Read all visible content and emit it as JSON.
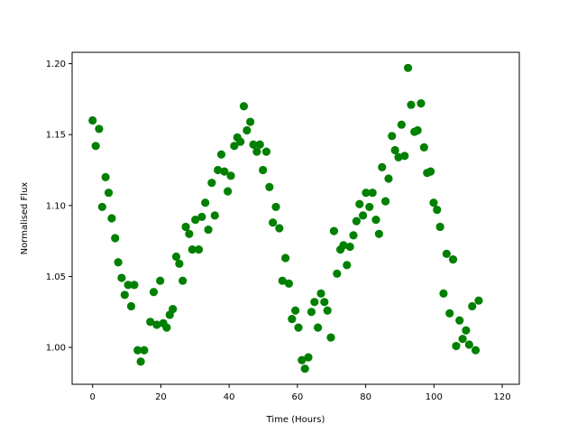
{
  "chart_data": {
    "type": "scatter",
    "title": "",
    "xlabel": "Time (Hours)",
    "ylabel": "Normalised Flux",
    "xlim": [
      -6,
      125
    ],
    "ylim": [
      0.974,
      1.208
    ],
    "xticks": [
      0,
      20,
      40,
      60,
      80,
      100,
      120
    ],
    "yticks": [
      1.0,
      1.05,
      1.1,
      1.15,
      1.2
    ],
    "xtick_labels": [
      "0",
      "20",
      "40",
      "60",
      "80",
      "100",
      "120"
    ],
    "ytick_labels": [
      "1.00",
      "1.05",
      "1.10",
      "1.15",
      "1.20"
    ],
    "grid": false,
    "marker_color": "#008000",
    "series": [
      {
        "points": [
          [
            0.0,
            1.16
          ],
          [
            0.9,
            1.142
          ],
          [
            1.9,
            1.154
          ],
          [
            2.8,
            1.099
          ],
          [
            3.8,
            1.12
          ],
          [
            4.7,
            1.109
          ],
          [
            5.6,
            1.091
          ],
          [
            6.6,
            1.077
          ],
          [
            7.5,
            1.06
          ],
          [
            8.5,
            1.049
          ],
          [
            9.4,
            1.037
          ],
          [
            10.4,
            1.044
          ],
          [
            11.3,
            1.029
          ],
          [
            12.2,
            1.044
          ],
          [
            13.2,
            0.998
          ],
          [
            14.1,
            0.99
          ],
          [
            15.1,
            0.998
          ],
          [
            16.9,
            1.018
          ],
          [
            17.9,
            1.039
          ],
          [
            18.8,
            1.016
          ],
          [
            19.8,
            1.047
          ],
          [
            20.7,
            1.017
          ],
          [
            21.7,
            1.014
          ],
          [
            22.6,
            1.023
          ],
          [
            23.5,
            1.027
          ],
          [
            24.5,
            1.064
          ],
          [
            25.4,
            1.059
          ],
          [
            26.4,
            1.047
          ],
          [
            27.3,
            1.085
          ],
          [
            28.3,
            1.08
          ],
          [
            29.2,
            1.069
          ],
          [
            30.1,
            1.09
          ],
          [
            31.1,
            1.069
          ],
          [
            32.0,
            1.092
          ],
          [
            33.0,
            1.102
          ],
          [
            33.9,
            1.083
          ],
          [
            34.9,
            1.116
          ],
          [
            35.8,
            1.093
          ],
          [
            36.7,
            1.125
          ],
          [
            37.7,
            1.136
          ],
          [
            38.6,
            1.124
          ],
          [
            39.6,
            1.11
          ],
          [
            40.5,
            1.121
          ],
          [
            41.5,
            1.142
          ],
          [
            42.4,
            1.148
          ],
          [
            43.3,
            1.145
          ],
          [
            44.3,
            1.17
          ],
          [
            45.2,
            1.153
          ],
          [
            46.2,
            1.159
          ],
          [
            47.1,
            1.143
          ],
          [
            48.1,
            1.138
          ],
          [
            49.0,
            1.143
          ],
          [
            49.9,
            1.125
          ],
          [
            50.9,
            1.138
          ],
          [
            51.8,
            1.113
          ],
          [
            52.8,
            1.088
          ],
          [
            53.7,
            1.099
          ],
          [
            54.7,
            1.084
          ],
          [
            55.6,
            1.047
          ],
          [
            56.5,
            1.063
          ],
          [
            57.5,
            1.045
          ],
          [
            58.4,
            1.02
          ],
          [
            59.4,
            1.026
          ],
          [
            60.3,
            1.014
          ],
          [
            61.3,
            0.991
          ],
          [
            62.2,
            0.985
          ],
          [
            63.2,
            0.993
          ],
          [
            64.1,
            1.025
          ],
          [
            65.0,
            1.032
          ],
          [
            66.0,
            1.014
          ],
          [
            66.9,
            1.038
          ],
          [
            67.9,
            1.032
          ],
          [
            68.8,
            1.026
          ],
          [
            69.8,
            1.007
          ],
          [
            70.7,
            1.082
          ],
          [
            71.6,
            1.052
          ],
          [
            72.6,
            1.069
          ],
          [
            73.5,
            1.072
          ],
          [
            74.5,
            1.058
          ],
          [
            75.4,
            1.071
          ],
          [
            76.4,
            1.079
          ],
          [
            77.3,
            1.089
          ],
          [
            78.2,
            1.101
          ],
          [
            79.2,
            1.093
          ],
          [
            80.1,
            1.109
          ],
          [
            81.1,
            1.099
          ],
          [
            82.0,
            1.109
          ],
          [
            83.0,
            1.09
          ],
          [
            83.9,
            1.08
          ],
          [
            84.8,
            1.127
          ],
          [
            85.8,
            1.103
          ],
          [
            86.7,
            1.119
          ],
          [
            87.7,
            1.149
          ],
          [
            88.6,
            1.139
          ],
          [
            89.6,
            1.134
          ],
          [
            90.5,
            1.157
          ],
          [
            91.4,
            1.135
          ],
          [
            92.4,
            1.197
          ],
          [
            93.3,
            1.171
          ],
          [
            94.3,
            1.152
          ],
          [
            95.2,
            1.153
          ],
          [
            96.2,
            1.172
          ],
          [
            97.1,
            1.141
          ],
          [
            98.0,
            1.123
          ],
          [
            99.0,
            1.124
          ],
          [
            99.9,
            1.102
          ],
          [
            100.9,
            1.097
          ],
          [
            101.8,
            1.085
          ],
          [
            102.8,
            1.038
          ],
          [
            103.7,
            1.066
          ],
          [
            104.6,
            1.024
          ],
          [
            105.6,
            1.062
          ],
          [
            106.5,
            1.001
          ],
          [
            107.5,
            1.019
          ],
          [
            108.4,
            1.006
          ],
          [
            109.4,
            1.012
          ],
          [
            110.3,
            1.002
          ],
          [
            111.2,
            1.029
          ],
          [
            112.2,
            0.998
          ],
          [
            113.1,
            1.033
          ]
        ]
      }
    ]
  }
}
